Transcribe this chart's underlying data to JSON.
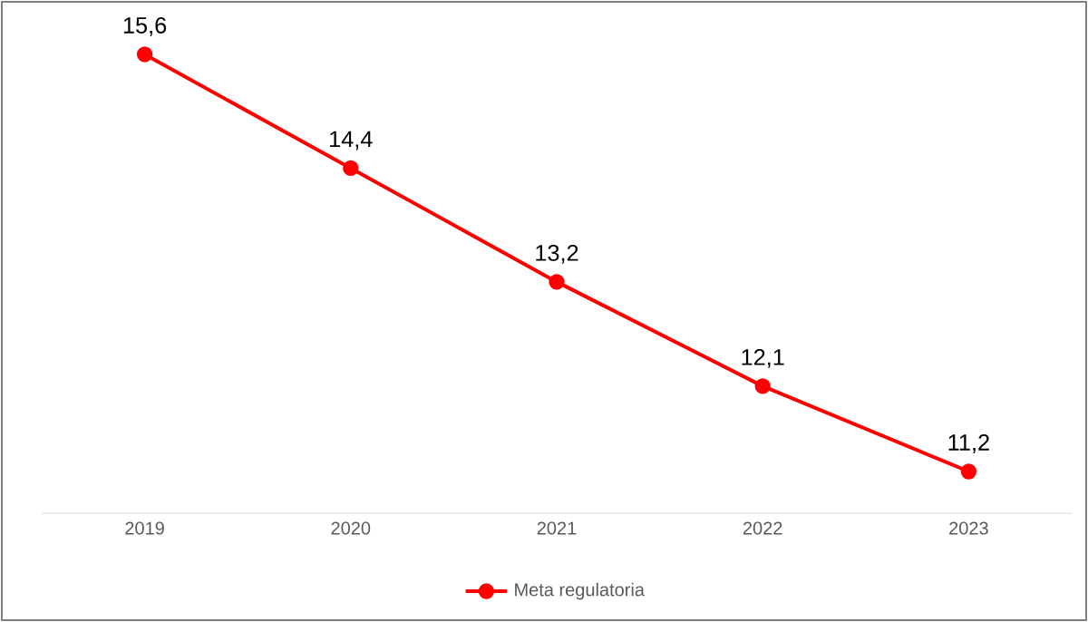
{
  "chart_data": {
    "type": "line",
    "categories": [
      "2019",
      "2020",
      "2021",
      "2022",
      "2023"
    ],
    "series": [
      {
        "name": "Meta regulatoria",
        "color": "#ff0000",
        "values": [
          15.6,
          14.4,
          13.2,
          12.1,
          11.2
        ],
        "value_labels": [
          "15,6",
          "14,4",
          "13,2",
          "12,1",
          "11,2"
        ]
      }
    ],
    "legend": "bottom",
    "marker": "circle",
    "line_style": "solid",
    "grid": false
  }
}
